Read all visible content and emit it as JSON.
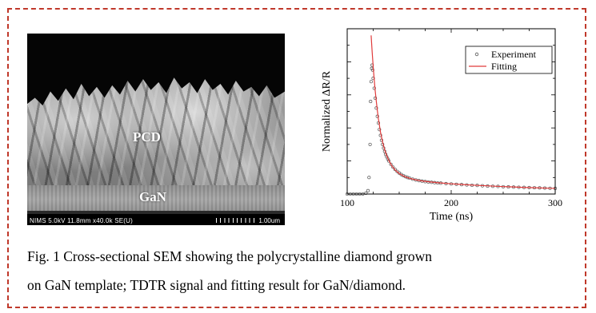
{
  "sem": {
    "layer_top_label": "PCD",
    "layer_bottom_label": "GaN",
    "info_bar": "NIMS 5.0kV 11.8mm x40.0k SE(U)",
    "scale_label": "1.00um"
  },
  "chart_data": {
    "type": "scatter",
    "xlabel": "Time (ns)",
    "ylabel": "Normalized ΔR/R",
    "xlim": [
      100,
      300
    ],
    "ylim": [
      0,
      1.0
    ],
    "xticks": [
      100,
      200,
      300
    ],
    "yticks_labeled": false,
    "legend_position": "top-right",
    "colors": {
      "experiment": "#555555",
      "fitting": "#e03b3b"
    },
    "series": [
      {
        "name": "Experiment",
        "kind": "markers",
        "x": [
          100,
          103,
          106,
          109,
          112,
          115,
          118,
          120,
          121,
          122,
          122.5,
          123,
          123.5,
          124,
          124.5,
          125,
          126,
          127,
          128,
          129,
          130,
          131,
          132,
          133,
          134,
          135,
          136,
          137,
          138,
          139,
          140,
          142,
          144,
          146,
          148,
          150,
          152,
          154,
          156,
          158,
          160,
          163,
          166,
          169,
          172,
          175,
          178,
          181,
          184,
          187,
          190,
          195,
          200,
          205,
          210,
          215,
          220,
          225,
          230,
          235,
          240,
          245,
          250,
          255,
          260,
          265,
          270,
          275,
          280,
          285,
          290,
          295,
          300
        ],
        "y": [
          0.0,
          0.0,
          0.0,
          0.0,
          0.0,
          0.0,
          0.005,
          0.02,
          0.1,
          0.3,
          0.56,
          0.68,
          0.76,
          0.78,
          0.75,
          0.7,
          0.64,
          0.58,
          0.52,
          0.47,
          0.43,
          0.39,
          0.355,
          0.325,
          0.3,
          0.278,
          0.258,
          0.24,
          0.225,
          0.212,
          0.2,
          0.18,
          0.163,
          0.149,
          0.137,
          0.127,
          0.118,
          0.111,
          0.105,
          0.1,
          0.096,
          0.09,
          0.085,
          0.081,
          0.078,
          0.075,
          0.073,
          0.071,
          0.069,
          0.067,
          0.066,
          0.063,
          0.061,
          0.059,
          0.057,
          0.055,
          0.053,
          0.052,
          0.05,
          0.048,
          0.047,
          0.046,
          0.044,
          0.043,
          0.042,
          0.041,
          0.04,
          0.039,
          0.038,
          0.037,
          0.036,
          0.035,
          0.034
        ]
      },
      {
        "name": "Fitting",
        "kind": "line",
        "x": [
          123,
          124,
          125,
          126,
          127,
          128,
          129,
          130,
          132,
          134,
          136,
          138,
          140,
          143,
          146,
          150,
          155,
          160,
          165,
          170,
          180,
          190,
          200,
          210,
          220,
          230,
          240,
          250,
          260,
          270,
          280,
          290,
          300
        ],
        "y": [
          0.96,
          0.86,
          0.77,
          0.69,
          0.62,
          0.56,
          0.505,
          0.455,
          0.375,
          0.315,
          0.268,
          0.232,
          0.203,
          0.17,
          0.146,
          0.124,
          0.106,
          0.095,
          0.087,
          0.081,
          0.073,
          0.067,
          0.062,
          0.058,
          0.054,
          0.051,
          0.048,
          0.045,
          0.043,
          0.04,
          0.038,
          0.036,
          0.034
        ]
      }
    ]
  },
  "caption": {
    "line1": "Fig. 1 Cross-sectional SEM showing the polycrystalline diamond grown",
    "line2": "on GaN template; TDTR signal and fitting result for GaN/diamond."
  }
}
